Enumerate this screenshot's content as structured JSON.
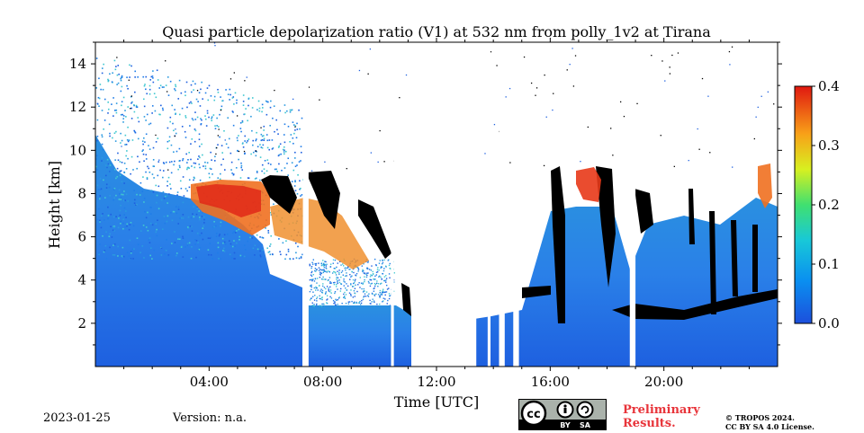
{
  "chart_data": {
    "type": "heatmap",
    "title": "Quasi particle depolarization ratio (V1) at 532 nm from polly_1v2 at Tirana",
    "xlabel": "Time [UTC]",
    "ylabel": "Height [km]",
    "xlim": [
      0,
      24
    ],
    "ylim": [
      0,
      15
    ],
    "x_ticks": [
      {
        "value": 4,
        "label": "04:00"
      },
      {
        "value": 8,
        "label": "08:00"
      },
      {
        "value": 12,
        "label": "12:00"
      },
      {
        "value": 16,
        "label": "16:00"
      },
      {
        "value": 20,
        "label": "20:00"
      }
    ],
    "y_ticks": [
      {
        "value": 2,
        "label": "2"
      },
      {
        "value": 4,
        "label": "4"
      },
      {
        "value": 6,
        "label": "6"
      },
      {
        "value": 8,
        "label": "8"
      },
      {
        "value": 10,
        "label": "10"
      },
      {
        "value": 12,
        "label": "12"
      },
      {
        "value": 14,
        "label": "14"
      }
    ],
    "colorbar": {
      "range": [
        0,
        0.4
      ],
      "colormap": "jet",
      "ticks": [
        {
          "value": 0.0,
          "label": "0.0"
        },
        {
          "value": 0.1,
          "label": "0.1"
        },
        {
          "value": 0.2,
          "label": "0.2"
        },
        {
          "value": 0.3,
          "label": "0.3"
        },
        {
          "value": 0.4,
          "label": "0.4"
        }
      ]
    },
    "colors": {
      "low": "#1f5fe0",
      "mid": "#3db8e8",
      "cloud": "#000000",
      "high": "#e03010"
    },
    "data_gaps_utc": [
      [
        7.3,
        7.5
      ],
      [
        10.4,
        10.5
      ],
      [
        11.2,
        13.4
      ],
      [
        13.8,
        13.9
      ],
      [
        14.2,
        14.4
      ],
      [
        14.7,
        14.9
      ],
      [
        18.8,
        19.0
      ]
    ],
    "cloud_layers": [
      {
        "x": [
          5.8,
          7.4
        ],
        "y": [
          6.8,
          8.8
        ]
      },
      {
        "x": [
          7.6,
          10.0
        ],
        "y": [
          5.2,
          8.6
        ]
      },
      {
        "x": [
          9.2,
          10.0
        ],
        "y": [
          5.3,
          7.5
        ]
      },
      {
        "x": [
          10.5,
          11.2
        ],
        "y": [
          2.4,
          3.8
        ]
      },
      {
        "x": [
          14.9,
          16.0
        ],
        "y": [
          3.2,
          3.6
        ]
      },
      {
        "x": [
          16.0,
          18.8
        ],
        "y": [
          2.2,
          9.2
        ]
      },
      {
        "x": [
          19.0,
          21.0
        ],
        "y": [
          2.1,
          8.2
        ]
      },
      {
        "x": [
          21.0,
          23.3
        ],
        "y": [
          2.2,
          7.8
        ]
      }
    ],
    "aerosol_layers": [
      {
        "x": [
          3.4,
          7.2
        ],
        "y": [
          5.8,
          8.6
        ],
        "value": 0.32
      },
      {
        "x": [
          7.5,
          9.5
        ],
        "y": [
          3.6,
          8.6
        ],
        "value": 0.28
      },
      {
        "x": [
          16.8,
          18.1
        ],
        "y": [
          7.0,
          9.2
        ],
        "value": 0.33
      },
      {
        "x": [
          23.0,
          24.0
        ],
        "y": [
          5.5,
          9.2
        ],
        "value": 0.3
      }
    ]
  },
  "footer": {
    "date": "2023-01-25",
    "version": "Version: n.a.",
    "cc_text": "cc",
    "cc_by": "BY",
    "cc_sa": "SA",
    "preliminary_line1": "Preliminary",
    "preliminary_line2": "Results.",
    "copyright_line1": "© TROPOS 2024.",
    "copyright_line2": "CC BY SA 4.0 License."
  }
}
